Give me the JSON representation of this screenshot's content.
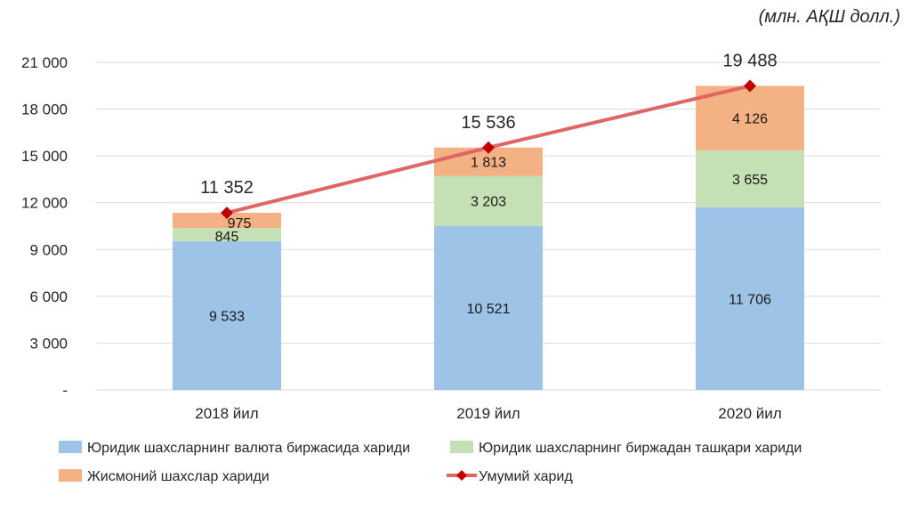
{
  "chart_data": {
    "type": "bar",
    "stacked": true,
    "unit_note": "(млн. АҚШ долл.)",
    "categories": [
      "2018 йил",
      "2019 йил",
      "2020 йил"
    ],
    "series": [
      {
        "name": "Юридик шахсларнинг валюта биржасида хариди",
        "values": [
          9533,
          10521,
          11706
        ],
        "value_labels": [
          "9 533",
          "10 521",
          "11 706"
        ],
        "color": "#9dc3e6"
      },
      {
        "name": "Юридик шахсларнинг биржадан ташқари хариди",
        "values": [
          845,
          3203,
          3655
        ],
        "value_labels": [
          "845",
          "3 203",
          "3 655"
        ],
        "color": "#c5e0b4"
      },
      {
        "name": "Жисмоний шахслар хариди",
        "values": [
          975,
          1813,
          4126
        ],
        "value_labels": [
          "975",
          "1 813",
          "4 126"
        ],
        "color": "#f4b183"
      }
    ],
    "line_series": {
      "name": "Умумий харид",
      "values": [
        11352,
        15536,
        19488
      ],
      "value_labels": [
        "11 352",
        "15 536",
        "19 488"
      ],
      "color": "#e06666",
      "marker_color": "#c00000"
    },
    "y_ticks": [
      {
        "value": 0,
        "label": "-"
      },
      {
        "value": 3000,
        "label": "3 000"
      },
      {
        "value": 6000,
        "label": "6 000"
      },
      {
        "value": 9000,
        "label": "9 000"
      },
      {
        "value": 12000,
        "label": "12 000"
      },
      {
        "value": 15000,
        "label": "15 000"
      },
      {
        "value": 18000,
        "label": "18 000"
      },
      {
        "value": 21000,
        "label": "21 000"
      }
    ],
    "ylim": [
      0,
      21000
    ],
    "grid": true,
    "legend_position": "bottom"
  }
}
